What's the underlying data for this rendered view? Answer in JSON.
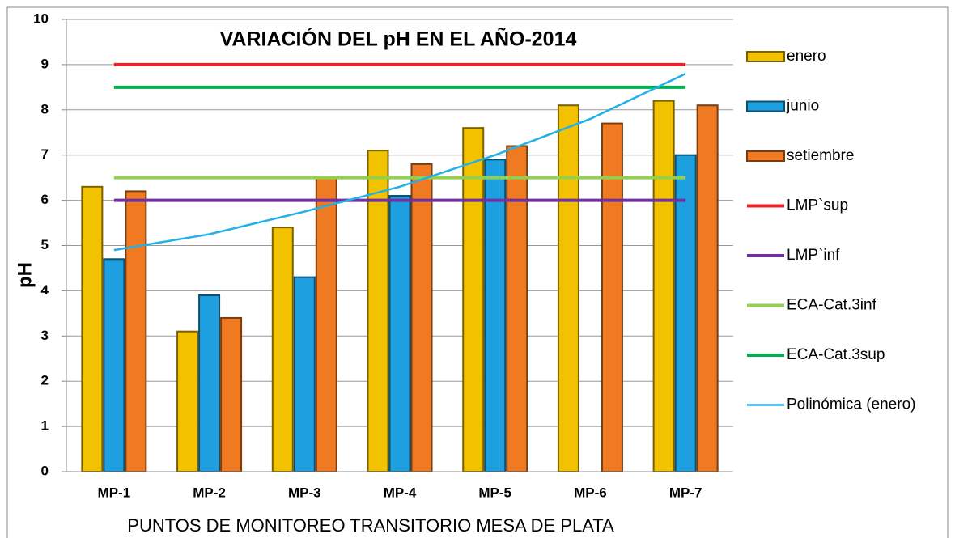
{
  "chart_data": {
    "type": "bar",
    "title": "VARIACIÓN  DEL pH EN EL AÑO-2014",
    "x_label": "PUNTOS DE MONITOREO TRANSITORIO MESA DE PLATA",
    "y_label": "pH",
    "categories": [
      "MP-1",
      "MP-2",
      "MP-3",
      "MP-4",
      "MP-5",
      "MP-6",
      "MP-7"
    ],
    "series": [
      {
        "name": "enero",
        "type": "bar",
        "color": "#f2c200",
        "values": [
          6.3,
          3.1,
          5.4,
          7.1,
          7.6,
          8.1,
          8.2
        ]
      },
      {
        "name": "junio",
        "type": "bar",
        "color": "#1e9fe0",
        "values": [
          4.7,
          3.9,
          4.3,
          6.1,
          6.9,
          null,
          7.0
        ]
      },
      {
        "name": "setiembre",
        "type": "bar",
        "color": "#f07a22",
        "values": [
          6.2,
          3.4,
          6.5,
          6.8,
          7.2,
          7.7,
          8.1
        ]
      },
      {
        "name": "LMP`sup",
        "type": "line",
        "color": "#e8262a",
        "values": [
          9,
          9,
          9,
          9,
          9,
          9,
          9
        ]
      },
      {
        "name": "LMP`inf",
        "type": "line",
        "color": "#7030a0",
        "values": [
          6,
          6,
          6,
          6,
          6,
          6,
          6
        ]
      },
      {
        "name": "ECA-Cat.3inf",
        "type": "line",
        "color": "#92d050",
        "values": [
          6.5,
          6.5,
          6.5,
          6.5,
          6.5,
          6.5,
          6.5
        ]
      },
      {
        "name": "ECA-Cat.3sup",
        "type": "line",
        "color": "#00b050",
        "values": [
          8.5,
          8.5,
          8.5,
          8.5,
          8.5,
          8.5,
          8.5
        ]
      },
      {
        "name": "Polinómica (enero)",
        "type": "line",
        "color": "#22b0e8",
        "values": [
          4.9,
          5.25,
          5.75,
          6.3,
          7.0,
          7.8,
          8.8
        ]
      }
    ],
    "ylim": [
      0,
      10
    ],
    "yticks": [
      0,
      1,
      2,
      3,
      4,
      5,
      6,
      7,
      8,
      9,
      10
    ],
    "grid": true,
    "legend": "right"
  }
}
